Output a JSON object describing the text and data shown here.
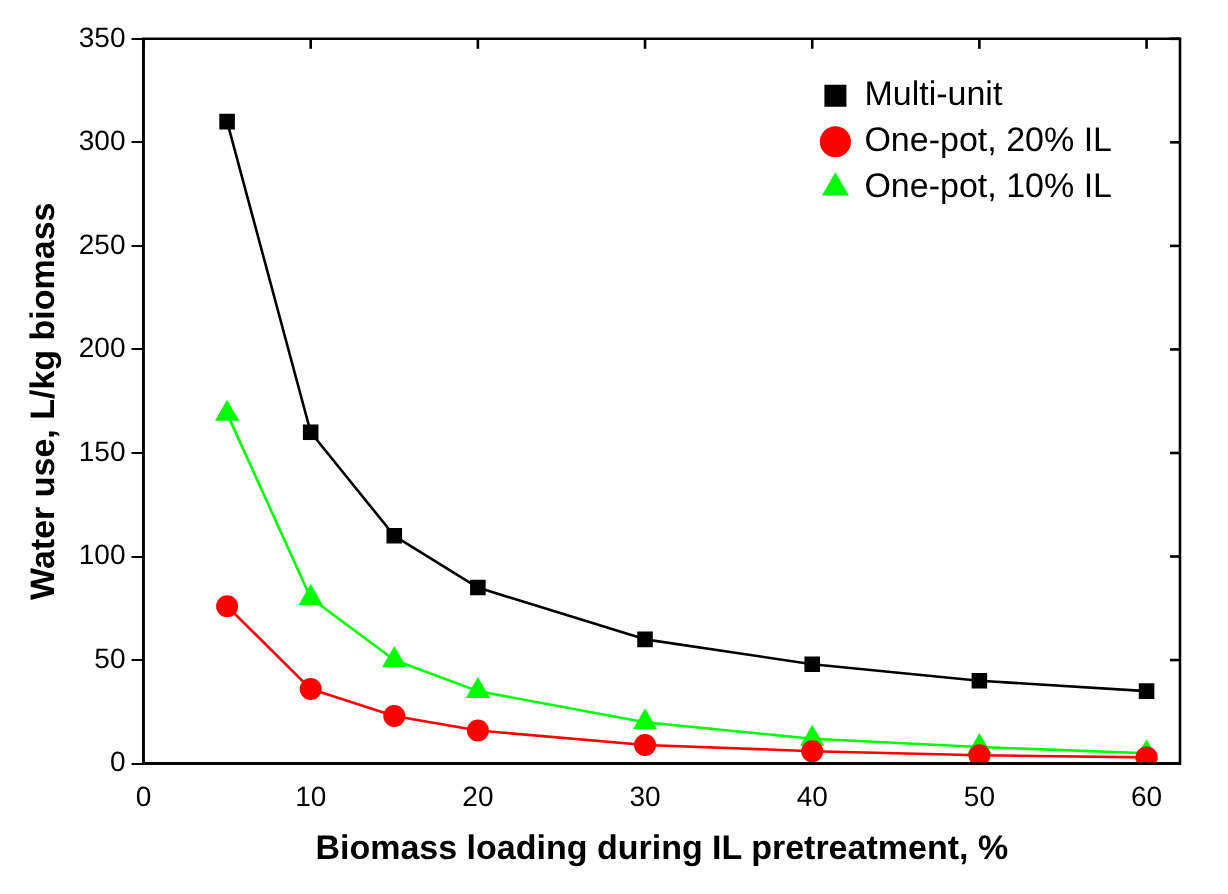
{
  "chart_data": {
    "type": "line",
    "xlabel": "Biomass loading during IL pretreatment, %",
    "ylabel": "Water use, L/kg biomass",
    "x": [
      5,
      10,
      15,
      20,
      30,
      40,
      50,
      60
    ],
    "series": [
      {
        "name": "Multi-unit",
        "color": "#000000",
        "marker": "square",
        "values": [
          310,
          160,
          110,
          85,
          60,
          48,
          40,
          35
        ]
      },
      {
        "name": "One-pot, 20% IL",
        "color": "#ff0000",
        "marker": "circle",
        "values": [
          76,
          36,
          23,
          16,
          9,
          6,
          4,
          3
        ]
      },
      {
        "name": "One-pot, 10% IL",
        "color": "#00ff00",
        "marker": "triangle",
        "values": [
          169,
          80,
          50,
          35,
          20,
          12,
          8,
          5
        ]
      }
    ],
    "xlim": [
      0,
      62
    ],
    "xticks": [
      0,
      10,
      20,
      30,
      40,
      50,
      60
    ],
    "ylim": [
      0,
      350
    ],
    "yticks": [
      0,
      50,
      100,
      150,
      200,
      250,
      300,
      350
    ],
    "grid": false,
    "legend": "top right",
    "line_style": "solid"
  }
}
